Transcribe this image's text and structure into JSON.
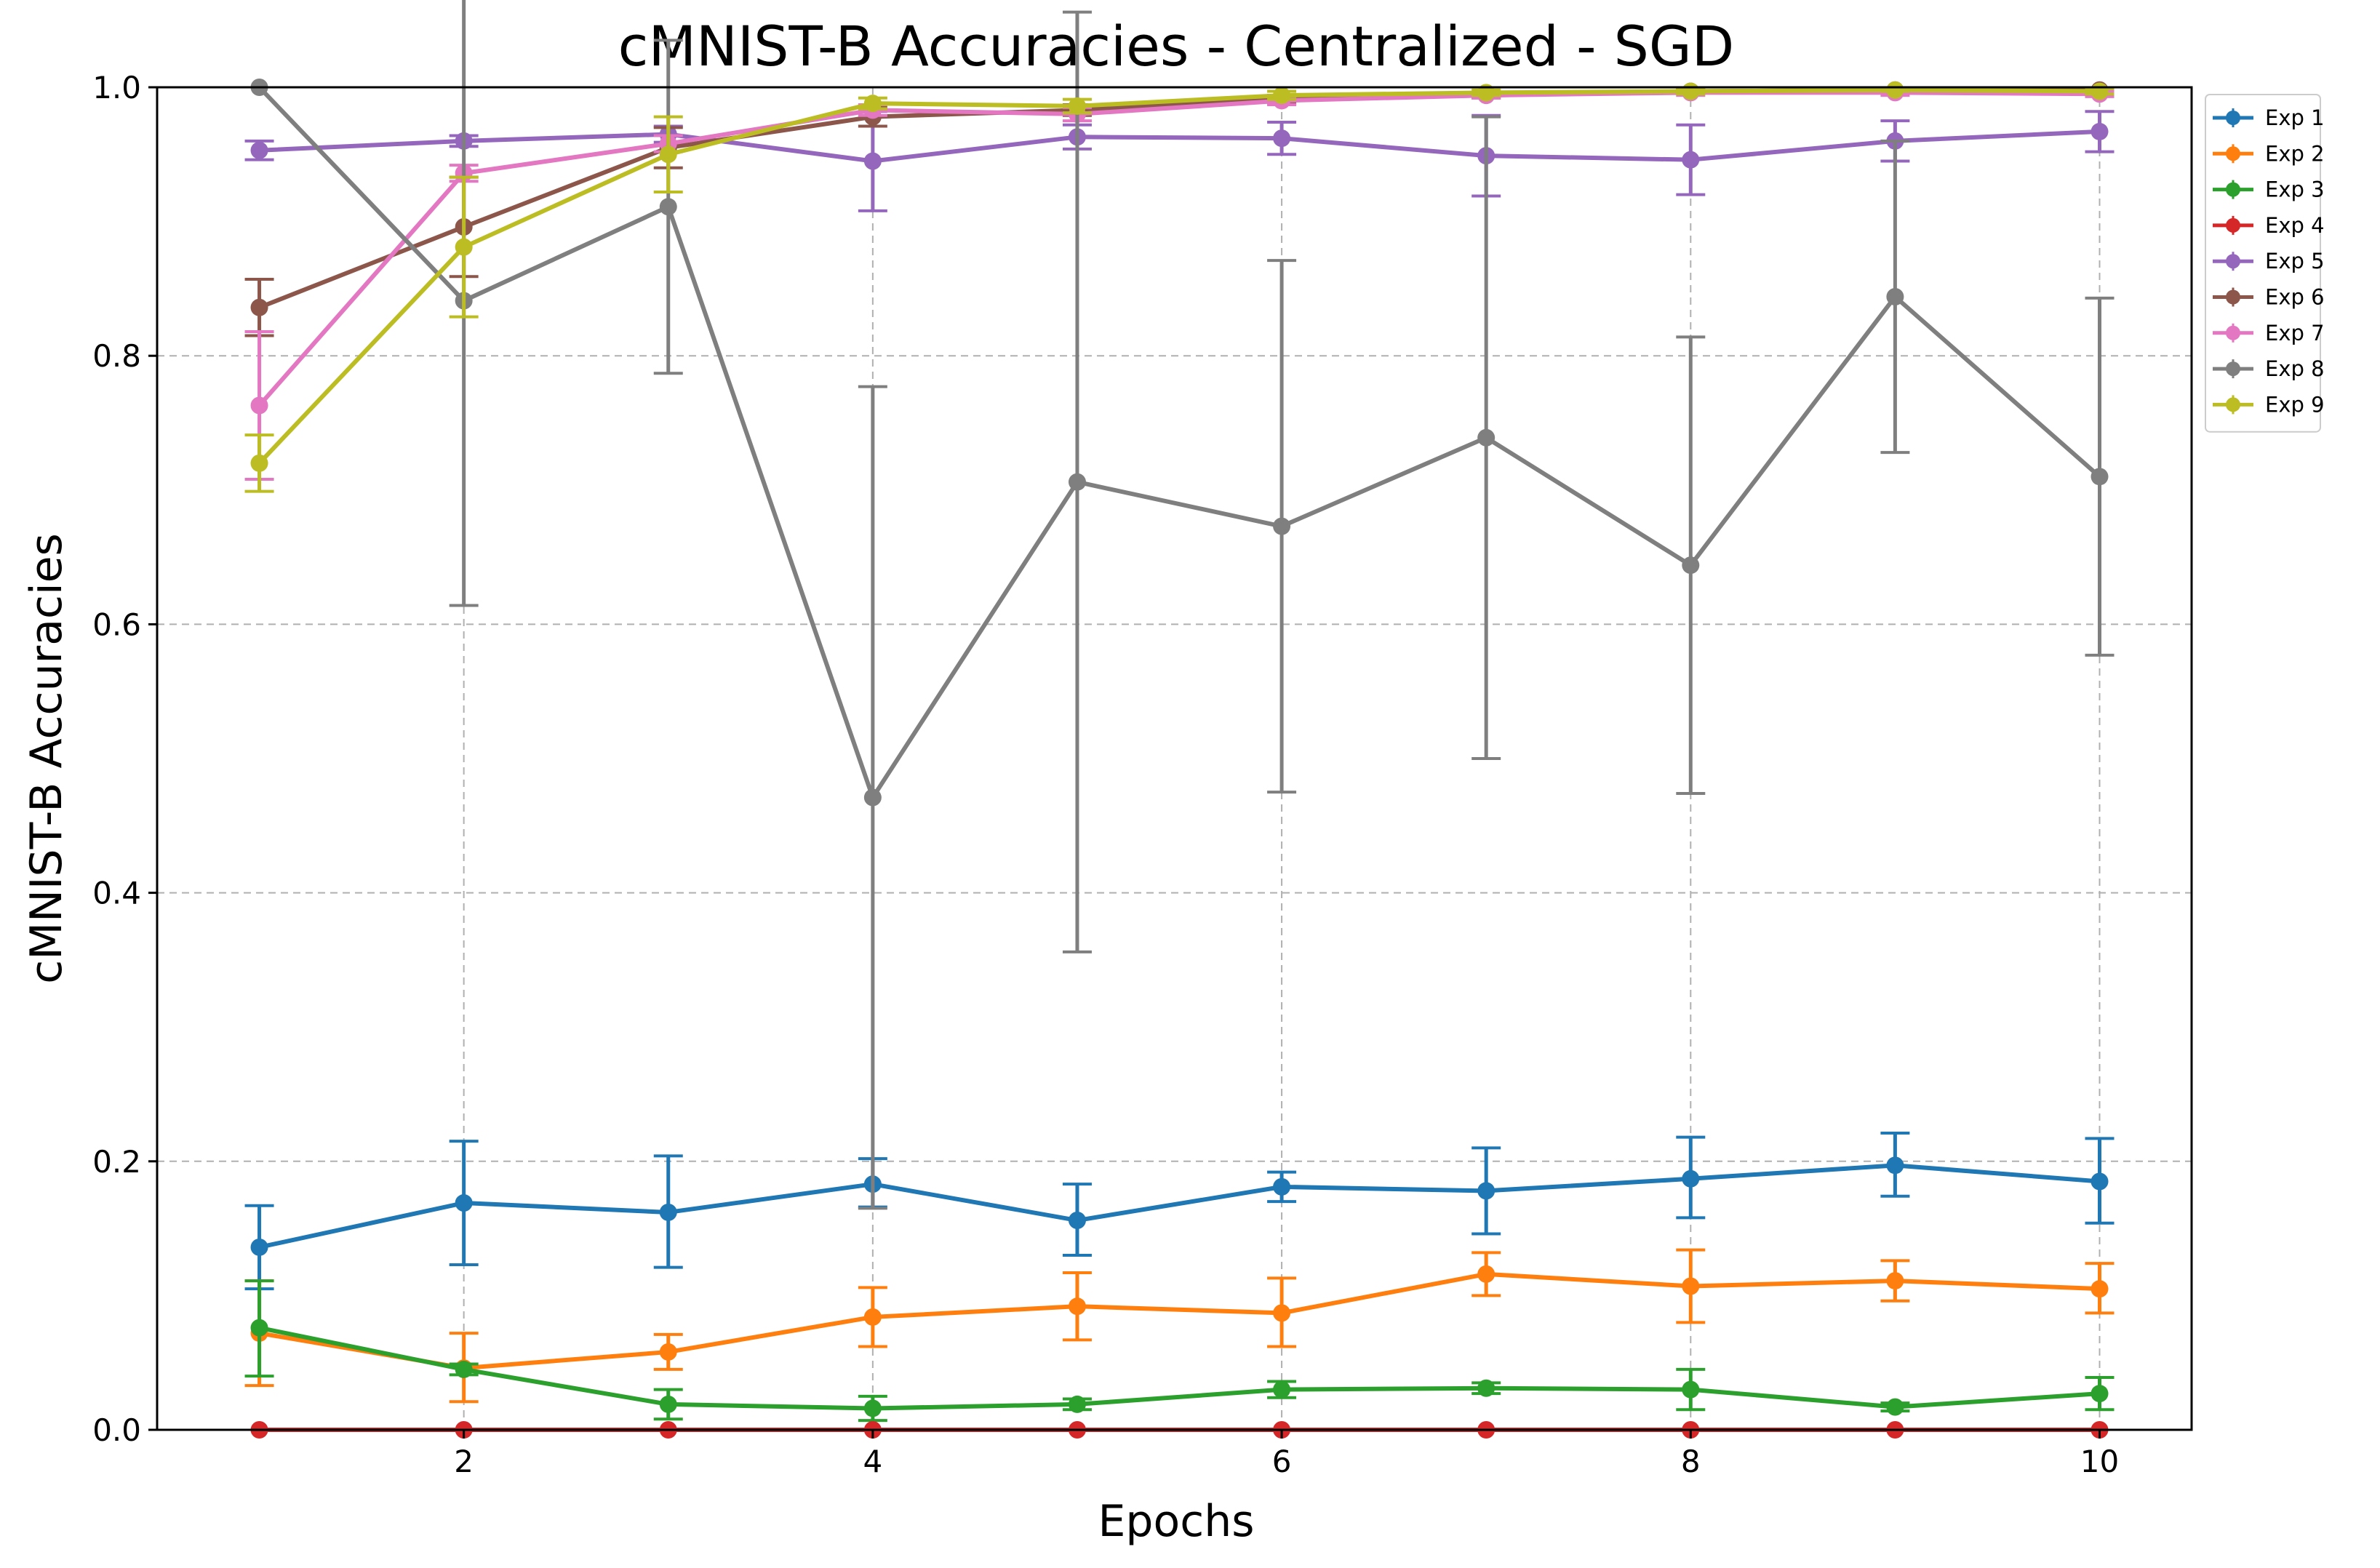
{
  "chart_data": {
    "type": "line",
    "title": "cMNIST-B Accuracies - Centralized - SGD",
    "xlabel": "Epochs",
    "ylabel": "cMNIST-B Accuracies",
    "xlim": [
      0.5,
      10.45
    ],
    "ylim": [
      0,
      1
    ],
    "xticks": [
      2,
      4,
      6,
      8,
      10
    ],
    "xtick_labels": [
      "2",
      "4",
      "6",
      "8",
      "10"
    ],
    "yticks": [
      0,
      0.2,
      0.4,
      0.6,
      0.8,
      1.0
    ],
    "ytick_labels": [
      "0.0",
      "0.2",
      "0.4",
      "0.6",
      "0.8",
      "1.0"
    ],
    "grid": true,
    "legend_position": "outside-top-right",
    "x": [
      1,
      2,
      3,
      4,
      5,
      6,
      7,
      8,
      9,
      10
    ],
    "series": [
      {
        "name": "Exp 1",
        "color": "#1f77b4",
        "values": [
          0.136,
          0.169,
          0.162,
          0.183,
          0.156,
          0.181,
          0.178,
          0.187,
          0.197,
          0.185
        ],
        "err_low": [
          0.031,
          0.046,
          0.041,
          0.017,
          0.026,
          0.011,
          0.032,
          0.029,
          0.023,
          0.031
        ],
        "err_high": [
          0.031,
          0.046,
          0.042,
          0.019,
          0.027,
          0.011,
          0.032,
          0.031,
          0.024,
          0.032
        ]
      },
      {
        "name": "Exp 2",
        "color": "#ff7f0e",
        "values": [
          0.072,
          0.046,
          0.058,
          0.084,
          0.092,
          0.087,
          0.116,
          0.107,
          0.111,
          0.105
        ],
        "err_low": [
          0.039,
          0.025,
          0.013,
          0.022,
          0.025,
          0.025,
          0.016,
          0.027,
          0.015,
          0.018
        ],
        "err_high": [
          0.039,
          0.026,
          0.013,
          0.022,
          0.025,
          0.026,
          0.016,
          0.027,
          0.015,
          0.019
        ]
      },
      {
        "name": "Exp 3",
        "color": "#2ca02c",
        "values": [
          0.076,
          0.045,
          0.019,
          0.016,
          0.019,
          0.03,
          0.031,
          0.03,
          0.017,
          0.027
        ],
        "err_low": [
          0.036,
          0.004,
          0.011,
          0.009,
          0.004,
          0.006,
          0.004,
          0.015,
          0.003,
          0.012
        ],
        "err_high": [
          0.035,
          0.004,
          0.011,
          0.009,
          0.004,
          0.006,
          0.004,
          0.015,
          0.003,
          0.012
        ]
      },
      {
        "name": "Exp 4",
        "color": "#d62728",
        "values": [
          0,
          0,
          0,
          0,
          0,
          0,
          0,
          0,
          0,
          0
        ],
        "err_low": [
          0,
          0,
          0,
          0,
          0,
          0,
          0,
          0,
          0,
          0
        ],
        "err_high": [
          0,
          0,
          0,
          0,
          0,
          0,
          0,
          0,
          0,
          0
        ]
      },
      {
        "name": "Exp 5",
        "color": "#9467bd",
        "values": [
          0.953,
          0.96,
          0.965,
          0.945,
          0.963,
          0.962,
          0.949,
          0.946,
          0.96,
          0.967
        ],
        "err_low": [
          0.007,
          0.004,
          0.006,
          0.037,
          0.009,
          0.012,
          0.03,
          0.026,
          0.015,
          0.015
        ],
        "err_high": [
          0.007,
          0.004,
          0.006,
          0.037,
          0.009,
          0.012,
          0.03,
          0.026,
          0.015,
          0.015
        ]
      },
      {
        "name": "Exp 6",
        "color": "#8c564b",
        "values": [
          0.836,
          0.896,
          0.955,
          0.978,
          0.983,
          0.991,
          0.994,
          0.997,
          0.998,
          0.998
        ],
        "err_low": [
          0.021,
          0.037,
          0.015,
          0.007,
          0.004,
          0.003,
          0.002,
          0.001,
          0.001,
          0.001
        ],
        "err_high": [
          0.021,
          0.037,
          0.015,
          0.007,
          0.004,
          0.003,
          0.002,
          0.001,
          0.001,
          0.001
        ]
      },
      {
        "name": "Exp 7",
        "color": "#e377c2",
        "values": [
          0.763,
          0.936,
          0.958,
          0.983,
          0.98,
          0.99,
          0.994,
          0.996,
          0.996,
          0.995
        ],
        "err_low": [
          0.055,
          0.006,
          0.006,
          0.004,
          0.005,
          0.003,
          0.002,
          0.002,
          0.002,
          0.002
        ],
        "err_high": [
          0.055,
          0.006,
          0.006,
          0.004,
          0.005,
          0.003,
          0.002,
          0.002,
          0.002,
          0.002
        ]
      },
      {
        "name": "Exp 8",
        "color": "#7f7f7f",
        "values": [
          1.0,
          0.841,
          0.911,
          0.471,
          0.706,
          0.673,
          0.739,
          0.644,
          0.844,
          0.71
        ],
        "err_low": [
          0,
          0.227,
          0.124,
          0.306,
          0.35,
          0.198,
          0.239,
          0.17,
          0.116,
          0.133
        ],
        "err_high": [
          0,
          0.227,
          0.124,
          0.306,
          0.35,
          0.198,
          0.239,
          0.17,
          0.116,
          0.133
        ]
      },
      {
        "name": "Exp 9",
        "color": "#bcbd22",
        "values": [
          0.72,
          0.881,
          0.95,
          0.988,
          0.986,
          0.994,
          0.996,
          0.997,
          0.998,
          0.997
        ],
        "err_low": [
          0.021,
          0.052,
          0.028,
          0.004,
          0.005,
          0.003,
          0.002,
          0.002,
          0.001,
          0.002
        ],
        "err_high": [
          0.021,
          0.052,
          0.028,
          0.004,
          0.005,
          0.003,
          0.002,
          0.002,
          0.001,
          0.002
        ]
      }
    ]
  }
}
